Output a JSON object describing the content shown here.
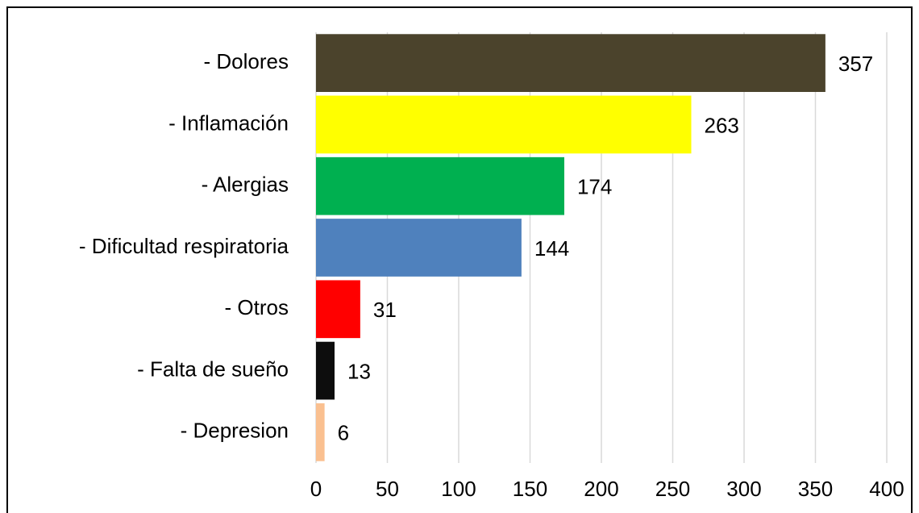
{
  "chart_data": {
    "type": "hbar",
    "categories": [
      "- Dolores",
      "- Inflamación",
      "- Alergias",
      "- Dificultad respiratoria",
      "- Otros",
      "- Falta de sueño",
      "- Depresion"
    ],
    "values": [
      357,
      263,
      174,
      144,
      31,
      13,
      6
    ],
    "colors": [
      "#4b432c",
      "#ffff00",
      "#00b050",
      "#4f81bd",
      "#ff0000",
      "#0d0d0d",
      "#fac090"
    ],
    "xlim": [
      0,
      400
    ],
    "xticks": [
      0,
      50,
      100,
      150,
      200,
      250,
      300,
      350,
      400
    ],
    "grid": true
  }
}
